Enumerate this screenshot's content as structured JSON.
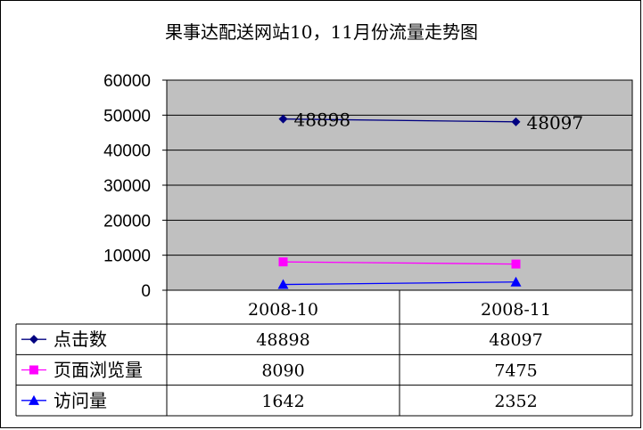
{
  "colors": {
    "plot_bg": "#c0c0c0",
    "grid": "#000000",
    "series": [
      "#000080",
      "#ff00ff",
      "#0000ff"
    ]
  },
  "chart_data": {
    "type": "line",
    "title": "果事达配送网站10，11月份流量走势图",
    "categories": [
      "2008-10",
      "2008-11"
    ],
    "ylim": [
      0,
      60000
    ],
    "yticks": [
      "0",
      "10000",
      "20000",
      "30000",
      "40000",
      "50000",
      "60000"
    ],
    "grid": true,
    "legend": "data-table",
    "series": [
      {
        "name": "点击数",
        "values": [
          48898,
          48097
        ],
        "marker": "diamond",
        "labels_shown": true
      },
      {
        "name": "页面浏览量",
        "values": [
          8090,
          7475
        ],
        "marker": "square",
        "labels_shown": false
      },
      {
        "name": "访问量",
        "values": [
          1642,
          2352
        ],
        "marker": "triangle",
        "labels_shown": false
      }
    ]
  }
}
